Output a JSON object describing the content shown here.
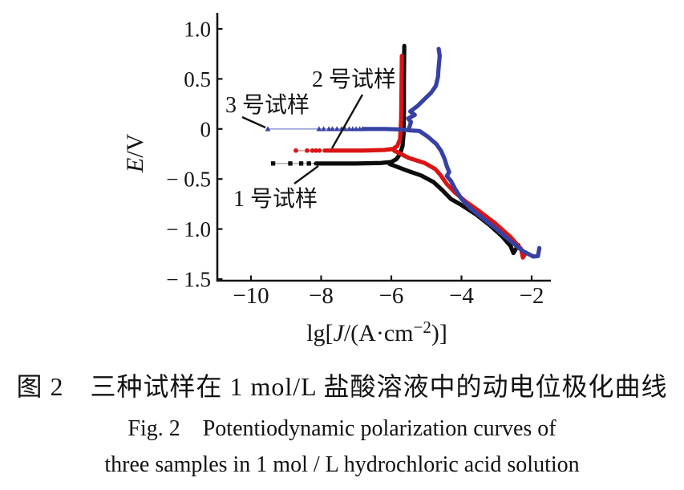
{
  "captions": {
    "chinese": "图 2　三种试样在 1 mol/L 盐酸溶液中的动电位极化曲线",
    "english_line1": "Fig. 2　Potentiodynamic polarization curves of",
    "english_line2": "three samples in 1 mol / L hydrochloric acid solution"
  },
  "chart_data": {
    "type": "line",
    "title": "",
    "xlabel": "lg[J/(A·cm−2)]",
    "xlabel_parts": {
      "prefix": "lg[",
      "symbol": "J",
      "mid": "/(A·cm",
      "sup": "−2",
      "suffix": ")]"
    },
    "ylabel": "E/V",
    "ylabel_parts": {
      "italic": "E",
      "rest": "/V"
    },
    "xlim": [
      -10,
      -2
    ],
    "ylim": [
      -1.5,
      1.0
    ],
    "grid": false,
    "legend_position": "inline-annotations",
    "x_tick_values": [
      -10,
      -8,
      -6,
      -4,
      -2
    ],
    "x_tick_labels": [
      "−10",
      "−8",
      "−6",
      "−4",
      "−2"
    ],
    "y_tick_values": [
      1.0,
      0.5,
      0,
      -0.5,
      -1.0,
      -1.5
    ],
    "y_tick_labels": [
      "1.0",
      "0.5",
      "0",
      "− 0.5",
      "− 1.0",
      "− 1.5"
    ],
    "series": [
      {
        "name": "1 号试样",
        "color": "#0c0c0c",
        "connector_color": "#b5b5b5",
        "marker": "square",
        "corrosion_potential": -0.345,
        "dots_e": -0.345,
        "dots": [
          -9.37,
          -8.88,
          -8.57,
          -8.35
        ],
        "connector": [
          [
            -9.37,
            -0.345
          ],
          [
            -8.15,
            -0.345
          ]
        ],
        "paths": [
          [
            [
              -8.15,
              -0.345
            ],
            [
              -7.0,
              -0.345
            ],
            [
              -6.3,
              -0.34
            ],
            [
              -6.0,
              -0.33
            ],
            [
              -5.85,
              -0.3
            ],
            [
              -5.75,
              -0.25
            ],
            [
              -5.68,
              -0.17
            ],
            [
              -5.65,
              -0.05
            ],
            [
              -5.64,
              0.2
            ],
            [
              -5.64,
              0.5
            ],
            [
              -5.63,
              0.83
            ]
          ],
          [
            [
              -6.05,
              -0.35
            ],
            [
              -5.6,
              -0.41
            ],
            [
              -5.15,
              -0.465
            ],
            [
              -4.8,
              -0.53
            ],
            [
              -4.55,
              -0.61
            ],
            [
              -4.3,
              -0.7
            ],
            [
              -4.0,
              -0.76
            ],
            [
              -3.6,
              -0.85
            ],
            [
              -3.2,
              -0.96
            ],
            [
              -2.85,
              -1.07
            ],
            [
              -2.6,
              -1.17
            ],
            [
              -2.52,
              -1.24
            ],
            [
              -2.38,
              -1.16
            ]
          ]
        ]
      },
      {
        "name": "2 号试样",
        "color": "#da1414",
        "connector_color": "#ef9a9a",
        "marker": "circle",
        "corrosion_potential": -0.22,
        "dots_e": -0.216,
        "dots": [
          -8.72,
          -8.4,
          -8.25,
          -8.15,
          -8.05
        ],
        "connector": [
          [
            -8.72,
            -0.216
          ],
          [
            -7.9,
            -0.216
          ]
        ],
        "paths": [
          [
            [
              -7.9,
              -0.216
            ],
            [
              -6.8,
              -0.216
            ],
            [
              -6.2,
              -0.21
            ],
            [
              -5.95,
              -0.2
            ],
            [
              -5.83,
              -0.17
            ],
            [
              -5.75,
              -0.1
            ],
            [
              -5.72,
              0.1
            ],
            [
              -5.71,
              0.4
            ],
            [
              -5.7,
              0.73
            ]
          ],
          [
            [
              -5.92,
              -0.216
            ],
            [
              -5.5,
              -0.29
            ],
            [
              -5.05,
              -0.34
            ],
            [
              -4.75,
              -0.4
            ],
            [
              -4.6,
              -0.46
            ],
            [
              -4.42,
              -0.55
            ],
            [
              -4.17,
              -0.64
            ],
            [
              -3.9,
              -0.72
            ],
            [
              -3.5,
              -0.82
            ],
            [
              -3.05,
              -0.94
            ],
            [
              -2.6,
              -1.08
            ],
            [
              -2.3,
              -1.2
            ],
            [
              -2.25,
              -1.285
            ],
            [
              -2.17,
              -1.24
            ]
          ]
        ]
      },
      {
        "name": "3 号试样",
        "color": "#3741a3",
        "connector_color": "#9ba1d6",
        "marker": "triangle",
        "corrosion_potential": 0.0,
        "dots_e": 0.0,
        "dots": [
          -9.52,
          -8.06,
          -7.93,
          -7.78,
          -7.68,
          -7.55,
          -7.42,
          -7.32,
          -7.2,
          -7.1,
          -7.0,
          -6.9,
          -6.82
        ],
        "connector": [
          [
            -9.52,
            0.0
          ],
          [
            -6.8,
            0.0
          ]
        ],
        "paths": [
          [
            [
              -6.8,
              0.0
            ],
            [
              -6.2,
              0.0
            ],
            [
              -5.7,
              -0.005
            ],
            [
              -5.45,
              -0.015
            ],
            [
              -5.2,
              -0.02
            ],
            [
              -4.95,
              -0.08
            ],
            [
              -4.72,
              -0.15
            ],
            [
              -4.58,
              -0.22
            ],
            [
              -4.48,
              -0.3
            ],
            [
              -4.42,
              -0.37
            ],
            [
              -4.35,
              -0.43
            ],
            [
              -4.42,
              -0.47
            ],
            [
              -4.3,
              -0.52
            ],
            [
              -4.18,
              -0.6
            ],
            [
              -4.0,
              -0.7
            ],
            [
              -3.75,
              -0.79
            ],
            [
              -3.4,
              -0.89
            ],
            [
              -3.0,
              -1.0
            ],
            [
              -2.6,
              -1.12
            ],
            [
              -2.25,
              -1.22
            ],
            [
              -1.95,
              -1.275
            ],
            [
              -1.82,
              -1.27
            ],
            [
              -1.78,
              -1.19
            ]
          ],
          [
            [
              -5.5,
              0.0
            ],
            [
              -5.44,
              0.07
            ],
            [
              -5.52,
              0.105
            ],
            [
              -5.33,
              0.14
            ],
            [
              -5.46,
              0.175
            ],
            [
              -5.25,
              0.23
            ],
            [
              -5.05,
              0.3
            ],
            [
              -4.87,
              0.36
            ],
            [
              -4.73,
              0.43
            ],
            [
              -4.67,
              0.52
            ],
            [
              -4.65,
              0.62
            ],
            [
              -4.62,
              0.73
            ],
            [
              -4.65,
              0.8
            ]
          ]
        ]
      }
    ]
  }
}
